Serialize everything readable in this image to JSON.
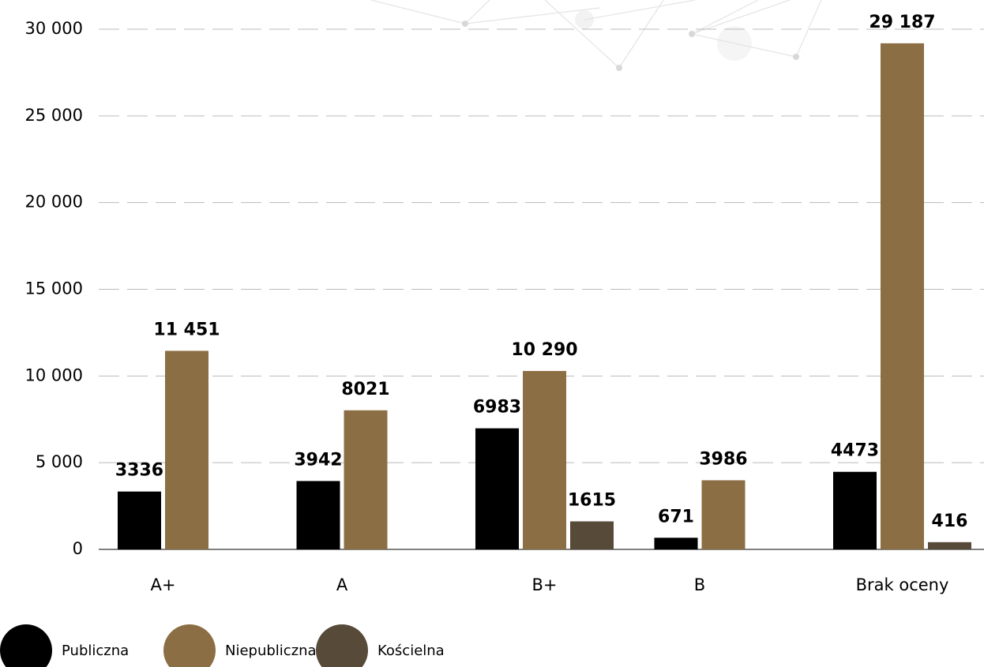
{
  "chart_data": {
    "type": "bar",
    "categories": [
      "A+",
      "A",
      "B+",
      "B",
      "Brak oceny"
    ],
    "series": [
      {
        "name": "Publiczna",
        "color": "#000000",
        "values": [
          3336,
          3942,
          6983,
          671,
          4473
        ],
        "value_labels": [
          "3336",
          "3942",
          "6983",
          "671",
          "4473"
        ]
      },
      {
        "name": "Niepubliczna",
        "color": "#8c6e44",
        "values": [
          11451,
          8021,
          10290,
          3986,
          29187
        ],
        "value_labels": [
          "11 451",
          "8021",
          "10 290",
          "3986",
          "29 187"
        ]
      },
      {
        "name": "Kościelna",
        "color": "#574a39",
        "values": [
          null,
          null,
          1615,
          null,
          416
        ],
        "value_labels": [
          null,
          null,
          "1615",
          null,
          "416"
        ]
      }
    ],
    "ylim": [
      0,
      30000
    ],
    "yticks": [
      0,
      {
        "value": 5000,
        "label": "5 000"
      },
      {
        "value": 10000,
        "label": "10 000"
      },
      {
        "value": 15000,
        "label": "15 000"
      },
      {
        "value": 20000,
        "label": "20 000"
      },
      {
        "value": 25000,
        "label": "25 000"
      },
      {
        "value": 30000,
        "label": "30 000"
      }
    ],
    "grid": true
  }
}
